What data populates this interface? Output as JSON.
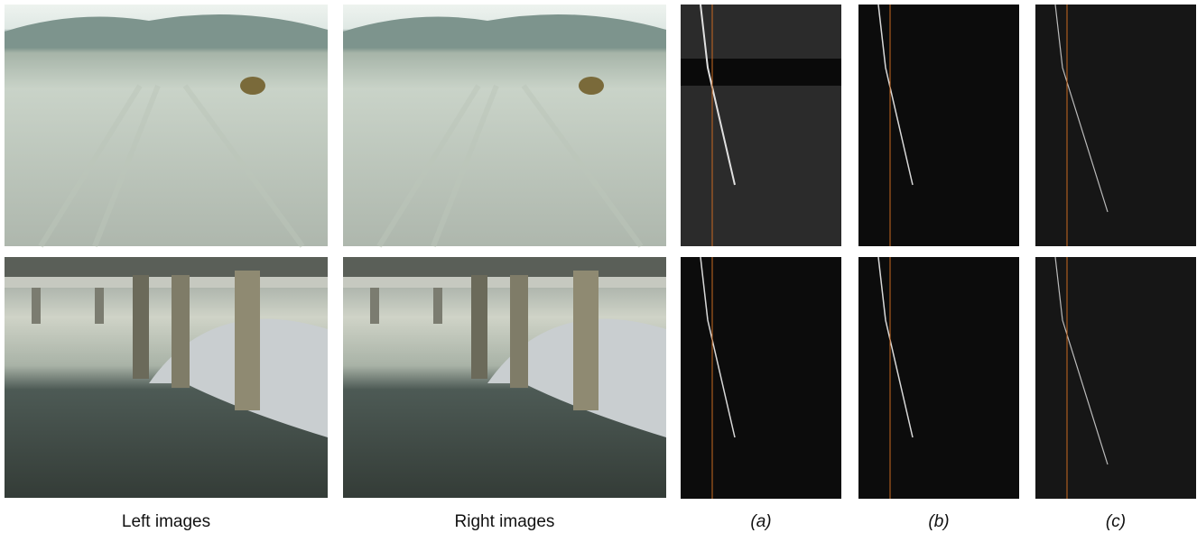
{
  "figure": {
    "captions": [
      "Left images",
      "Right images",
      "(a)",
      "(b)",
      "(c)"
    ]
  }
}
